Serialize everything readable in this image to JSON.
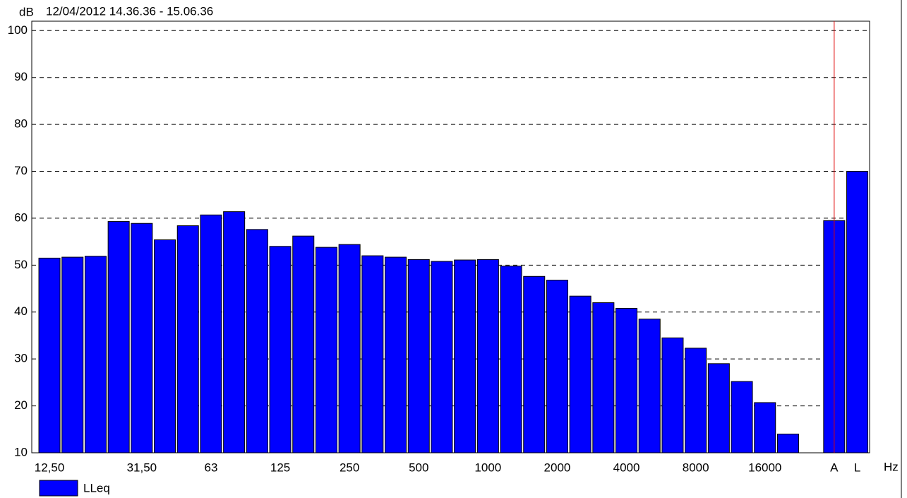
{
  "chart_data": {
    "type": "bar",
    "title": "12/04/2012 14.36.36 - 15.06.36",
    "y_label": "dB",
    "x_label": "Hz",
    "categories": [
      "12,50",
      null,
      null,
      null,
      "31,50",
      null,
      null,
      "63",
      null,
      null,
      "125",
      null,
      null,
      "250",
      null,
      null,
      "500",
      null,
      null,
      "1000",
      null,
      null,
      "2000",
      null,
      null,
      "4000",
      null,
      null,
      "8000",
      null,
      null,
      "16000",
      null,
      null,
      "A",
      "L"
    ],
    "series": [
      {
        "name": "LLeq",
        "color": "#0000ff",
        "values": [
          51.5,
          51.7,
          51.9,
          59.3,
          58.9,
          55.4,
          58.4,
          60.7,
          61.4,
          57.6,
          54.0,
          56.2,
          53.8,
          54.4,
          52.0,
          51.7,
          51.2,
          50.8,
          51.1,
          51.2,
          49.8,
          47.6,
          46.8,
          43.4,
          42.0,
          40.8,
          38.5,
          34.5,
          32.3,
          29.0,
          25.2,
          20.7,
          14.0,
          null,
          59.5,
          70.0
        ]
      }
    ],
    "ylim": [
      10,
      102
    ],
    "yticks": [
      10,
      20,
      30,
      40,
      50,
      60,
      70,
      80,
      90,
      100
    ],
    "grid": true,
    "cursor": 34,
    "cursor_color": "#e00000"
  }
}
